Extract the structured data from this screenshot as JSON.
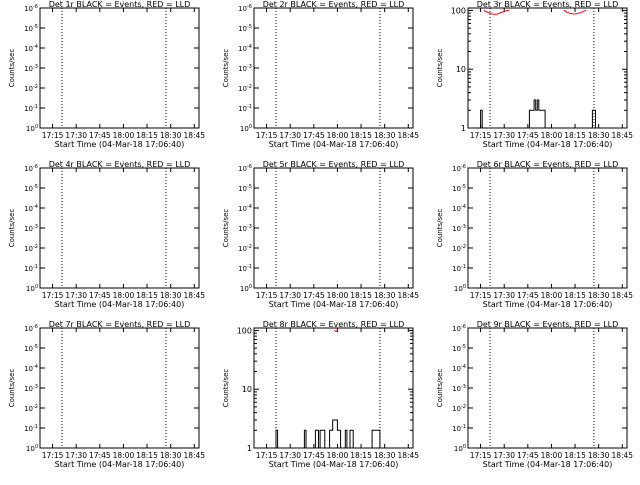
{
  "colors": {
    "events": "#000000",
    "lld": "#ff0000",
    "background": "#ffffff"
  },
  "chart_data": [
    {
      "type": "line",
      "title": "Det 1r BLACK = Events, RED = LLD",
      "xlabel": "Start Time (04-Mar-18 17:06:40)",
      "ylabel": "Counts/sec",
      "x_ticks": [
        "17:15",
        "17:30",
        "17:45",
        "18:00",
        "18:15",
        "18:30",
        "18:45"
      ],
      "xlim": [
        "17:07",
        "18:48"
      ],
      "vlines": [
        "17:21",
        "18:27"
      ],
      "y_scale": "log",
      "y_ticks": [
        "10^0",
        "10^-1",
        "10^-2",
        "10^-3",
        "10^-4",
        "10^-5",
        "10^-6"
      ],
      "series": [],
      "grid": false
    },
    {
      "type": "line",
      "title": "Det 2r BLACK = Events, RED = LLD",
      "xlabel": "Start Time (04-Mar-18 17:06:40)",
      "ylabel": "Counts/sec",
      "x_ticks": [
        "17:15",
        "17:30",
        "17:45",
        "18:00",
        "18:15",
        "18:30",
        "18:45"
      ],
      "xlim": [
        "17:07",
        "18:48"
      ],
      "vlines": [
        "17:21",
        "18:27"
      ],
      "y_scale": "log",
      "y_ticks": [
        "10^0",
        "10^-1",
        "10^-2",
        "10^-3",
        "10^-4",
        "10^-5",
        "10^-6"
      ],
      "series": [],
      "grid": false
    },
    {
      "type": "line",
      "title": "Det 3r BLACK = Events, RED = LLD",
      "xlabel": "Start Time (04-Mar-18 17:06:40)",
      "ylabel": "Counts/sec",
      "x_ticks": [
        "17:15",
        "17:30",
        "17:45",
        "18:00",
        "18:15",
        "18:30",
        "18:45"
      ],
      "xlim": [
        "17:07",
        "18:48"
      ],
      "vlines": [
        "17:21",
        "18:27"
      ],
      "y_scale": "log",
      "y_ticks": [
        "1",
        "10",
        "100"
      ],
      "ylim": [
        1,
        110
      ],
      "series": [
        {
          "color": "#000000",
          "points": [
            [
              "17:07",
              1
            ],
            [
              "17:15",
              1
            ],
            [
              "17:15",
              2
            ],
            [
              "17:16",
              2
            ],
            [
              "17:16",
              1
            ],
            [
              "17:46",
              1
            ],
            [
              "17:46",
              2
            ],
            [
              "17:49",
              2
            ],
            [
              "17:49",
              3
            ],
            [
              "17:50",
              3
            ],
            [
              "17:50",
              2
            ],
            [
              "17:51",
              2
            ],
            [
              "17:51",
              3
            ],
            [
              "17:52",
              3
            ],
            [
              "17:52",
              2
            ],
            [
              "17:56",
              2
            ],
            [
              "17:56",
              1
            ],
            [
              "18:26",
              1
            ],
            [
              "18:26",
              2
            ],
            [
              "18:28",
              2
            ],
            [
              "18:28",
              1
            ],
            [
              "18:48",
              1
            ]
          ]
        },
        {
          "color": "#ff0000",
          "points": [
            [
              "17:17",
              100
            ],
            [
              "17:19",
              94
            ],
            [
              "17:21",
              90
            ],
            [
              "17:23",
              86
            ],
            [
              "17:25",
              86
            ],
            [
              "17:27",
              90
            ],
            [
              "17:29",
              94
            ],
            [
              "17:31",
              98
            ],
            [
              "17:33",
              100
            ]
          ]
        },
        {
          "color": "#ff0000",
          "points": [
            [
              "18:08",
              100
            ],
            [
              "18:10",
              93
            ],
            [
              "18:12",
              89
            ],
            [
              "18:14",
              87
            ],
            [
              "18:16",
              88
            ],
            [
              "18:18",
              91
            ],
            [
              "18:20",
              95
            ],
            [
              "18:22",
              100
            ]
          ]
        }
      ],
      "grid": false
    },
    {
      "type": "line",
      "title": "Det 4r BLACK = Events, RED = LLD",
      "xlabel": "Start Time (04-Mar-18 17:06:40)",
      "ylabel": "Counts/sec",
      "x_ticks": [
        "17:15",
        "17:30",
        "17:45",
        "18:00",
        "18:15",
        "18:30",
        "18:45"
      ],
      "xlim": [
        "17:07",
        "18:48"
      ],
      "vlines": [
        "17:21",
        "18:27"
      ],
      "y_scale": "log",
      "y_ticks": [
        "10^0",
        "10^-1",
        "10^-2",
        "10^-3",
        "10^-4",
        "10^-5",
        "10^-6"
      ],
      "series": [],
      "grid": false
    },
    {
      "type": "line",
      "title": "Det 5r BLACK = Events, RED = LLD",
      "xlabel": "Start Time (04-Mar-18 17:06:40)",
      "ylabel": "Counts/sec",
      "x_ticks": [
        "17:15",
        "17:30",
        "17:45",
        "18:00",
        "18:15",
        "18:30",
        "18:45"
      ],
      "xlim": [
        "17:07",
        "18:48"
      ],
      "vlines": [
        "17:21",
        "18:27"
      ],
      "y_scale": "log",
      "y_ticks": [
        "10^0",
        "10^-1",
        "10^-2",
        "10^-3",
        "10^-4",
        "10^-5",
        "10^-6"
      ],
      "series": [],
      "grid": false
    },
    {
      "type": "line",
      "title": "Det 6r BLACK = Events, RED = LLD",
      "xlabel": "Start Time (04-Mar-18 17:06:40)",
      "ylabel": "Counts/sec",
      "x_ticks": [
        "17:15",
        "17:30",
        "17:45",
        "18:00",
        "18:15",
        "18:30",
        "18:45"
      ],
      "xlim": [
        "17:07",
        "18:48"
      ],
      "vlines": [
        "17:21",
        "18:27"
      ],
      "y_scale": "log",
      "y_ticks": [
        "10^0",
        "10^-1",
        "10^-2",
        "10^-3",
        "10^-4",
        "10^-5",
        "10^-6"
      ],
      "series": [],
      "grid": false
    },
    {
      "type": "line",
      "title": "Det 7r BLACK = Events, RED = LLD",
      "xlabel": "Start Time (04-Mar-18 17:06:40)",
      "ylabel": "Counts/sec",
      "x_ticks": [
        "17:15",
        "17:30",
        "17:45",
        "18:00",
        "18:15",
        "18:30",
        "18:45"
      ],
      "xlim": [
        "17:07",
        "18:48"
      ],
      "vlines": [
        "17:21",
        "18:27"
      ],
      "y_scale": "log",
      "y_ticks": [
        "10^0",
        "10^-1",
        "10^-2",
        "10^-3",
        "10^-4",
        "10^-5",
        "10^-6"
      ],
      "series": [],
      "grid": false
    },
    {
      "type": "line",
      "title": "Det 8r BLACK = Events, RED = LLD",
      "xlabel": "Start Time (04-Mar-18 17:06:40)",
      "ylabel": "Counts/sec",
      "x_ticks": [
        "17:15",
        "17:30",
        "17:45",
        "18:00",
        "18:15",
        "18:30",
        "18:45"
      ],
      "xlim": [
        "17:07",
        "18:48"
      ],
      "vlines": [
        "17:21",
        "18:27"
      ],
      "y_scale": "log",
      "y_ticks": [
        "1",
        "10",
        "100"
      ],
      "ylim": [
        1,
        110
      ],
      "series": [
        {
          "color": "#000000",
          "points": [
            [
              "17:07",
              1
            ],
            [
              "17:21",
              1
            ],
            [
              "17:21",
              2
            ],
            [
              "17:22",
              2
            ],
            [
              "17:22",
              1
            ],
            [
              "17:39",
              1
            ],
            [
              "17:39",
              2
            ],
            [
              "17:40",
              2
            ],
            [
              "17:40",
              1
            ],
            [
              "17:46",
              1
            ],
            [
              "17:46",
              2
            ],
            [
              "17:48",
              2
            ],
            [
              "17:48",
              1
            ],
            [
              "17:49",
              1
            ],
            [
              "17:49",
              2
            ],
            [
              "17:52",
              2
            ],
            [
              "17:52",
              1
            ],
            [
              "17:55",
              1
            ],
            [
              "17:55",
              2
            ],
            [
              "17:57",
              2
            ],
            [
              "17:57",
              3
            ],
            [
              "18:00",
              3
            ],
            [
              "18:00",
              2
            ],
            [
              "18:02",
              2
            ],
            [
              "18:02",
              1
            ],
            [
              "18:05",
              1
            ],
            [
              "18:05",
              2
            ],
            [
              "18:06",
              2
            ],
            [
              "18:06",
              1
            ],
            [
              "18:08",
              1
            ],
            [
              "18:08",
              2
            ],
            [
              "18:10",
              2
            ],
            [
              "18:10",
              1
            ],
            [
              "18:22",
              1
            ],
            [
              "18:22",
              2
            ],
            [
              "18:27",
              2
            ],
            [
              "18:27",
              1
            ],
            [
              "18:48",
              1
            ]
          ]
        },
        {
          "color": "#ff0000",
          "points": [
            [
              "17:58",
              100
            ],
            [
              "17:59",
              96
            ],
            [
              "18:00",
              100
            ]
          ]
        }
      ],
      "grid": false
    },
    {
      "type": "line",
      "title": "Det 9r BLACK = Events, RED = LLD",
      "xlabel": "Start Time (04-Mar-18 17:06:40)",
      "ylabel": "Counts/sec",
      "x_ticks": [
        "17:15",
        "17:30",
        "17:45",
        "18:00",
        "18:15",
        "18:30",
        "18:45"
      ],
      "xlim": [
        "17:07",
        "18:48"
      ],
      "vlines": [
        "17:21",
        "18:27"
      ],
      "y_scale": "log",
      "y_ticks": [
        "10^0",
        "10^-1",
        "10^-2",
        "10^-3",
        "10^-4",
        "10^-5",
        "10^-6"
      ],
      "series": [],
      "grid": false
    }
  ]
}
